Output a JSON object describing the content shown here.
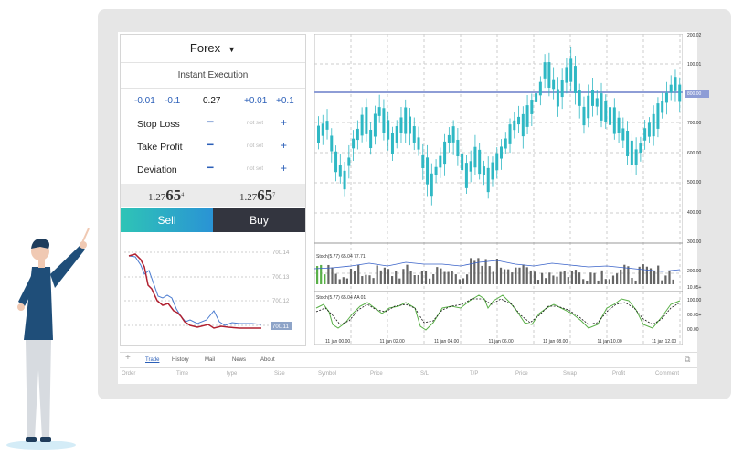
{
  "panel": {
    "symbol": "Forex",
    "mode": "Instant Execution",
    "lots": [
      "-0.01",
      "-0.1",
      "0.27",
      "+0.01",
      "+0.1"
    ],
    "params": [
      {
        "label": "Stop Loss",
        "value": "not set"
      },
      {
        "label": "Take Profit",
        "value": "not set"
      },
      {
        "label": "Deviation",
        "value": "not set"
      }
    ],
    "sell_price": {
      "prefix": "1.27",
      "big": "65",
      "sup": "4"
    },
    "buy_price": {
      "prefix": "1.27",
      "big": "65",
      "sup": "7"
    },
    "sell_label": "Sell",
    "buy_label": "Buy"
  },
  "mini_chart": {
    "levels": [
      "700.14",
      "700.13",
      "700.12",
      "700.11"
    ],
    "current": "700.11"
  },
  "chart": {
    "price_axis": [
      "200.02",
      "100.01",
      "800.00",
      "700.00",
      "600.00",
      "500.00",
      "400.00",
      "300.00",
      "200.00",
      "10.05+",
      "100.00",
      "00.05+",
      "00.00"
    ],
    "time_axis": [
      "11 jan 00.00",
      "11 jan 02.00",
      "11 jan 04.00",
      "11 jan 06.00",
      "11 jan 08.00",
      "11 jan 10.00",
      "11 jan 12.00"
    ],
    "indicator1": "Stoch(5.77) 65.04 77.71",
    "indicator2": "Stoch(5.77) 65.04 AA 01",
    "highlight_level": "800.00"
  },
  "bottom": {
    "tabs": [
      "Trade",
      "History",
      "Mail",
      "News",
      "About"
    ],
    "columns": [
      "Order",
      "Time",
      "type",
      "Size",
      "Symbol",
      "Price",
      "S/L",
      "T/P",
      "Price",
      "Swap",
      "Profit",
      "Comment"
    ]
  },
  "colors": {
    "candle": "#2fb8c4",
    "accent": "#2b5fb8",
    "sell": "#2ec4b6",
    "buy": "#33353f"
  }
}
